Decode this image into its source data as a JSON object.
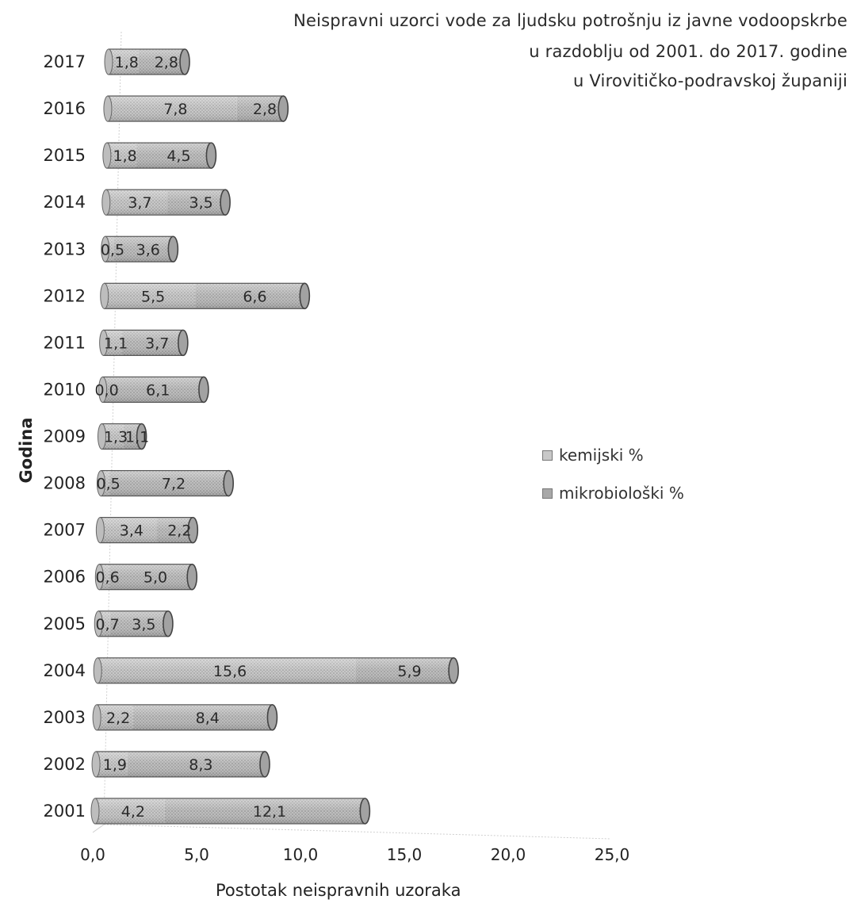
{
  "chart_data": {
    "type": "bar",
    "orientation": "horizontal",
    "stacked": true,
    "title_lines": [
      "Neispravni uzorci vode za ljudsku potrošnju iz javne vodoopskrbe",
      "u razdoblju od 2001. do 2017. godine",
      "u  Virovitičko-podravskoj županiji"
    ],
    "xlabel": "Postotak neispravnih uzoraka",
    "ylabel": "Godina",
    "xlim": [
      0,
      25
    ],
    "xticks": [
      "0,0",
      "5,0",
      "10,0",
      "15,0",
      "20,0",
      "25,0"
    ],
    "xtick_values": [
      0,
      5,
      10,
      15,
      20,
      25
    ],
    "categories": [
      "2017",
      "2016",
      "2015",
      "2014",
      "2013",
      "2012",
      "2011",
      "2010",
      "2009",
      "2008",
      "2007",
      "2006",
      "2005",
      "2004",
      "2003",
      "2002",
      "2001"
    ],
    "series": [
      {
        "name": "kemijski %",
        "values": [
          1.8,
          7.8,
          1.8,
          3.7,
          0.5,
          5.5,
          1.1,
          0.0,
          1.3,
          0.5,
          3.4,
          0.6,
          0.7,
          15.6,
          2.2,
          1.9,
          4.2
        ],
        "labels": [
          "1,8",
          "7,8",
          "1,8",
          "3,7",
          "0,5",
          "5,5",
          "1,1",
          "0,0",
          "1,3",
          "0,5",
          "3,4",
          "0,6",
          "0,7",
          "15,6",
          "2,2",
          "1,9",
          "4,2"
        ]
      },
      {
        "name": "mikrobiološki %",
        "values": [
          2.8,
          2.8,
          4.5,
          3.5,
          3.6,
          6.6,
          3.7,
          6.1,
          1.1,
          7.2,
          2.2,
          5.0,
          3.5,
          5.9,
          8.4,
          8.3,
          12.1
        ],
        "labels": [
          "2,8",
          "2,8",
          "4,5",
          "3,5",
          "3,6",
          "6,6",
          "3,7",
          "6,1",
          "1,1",
          "7,2",
          "2,2",
          "5,0",
          "3,5",
          "5,9",
          "8,4",
          "8,3",
          "12,1"
        ]
      }
    ],
    "legend_position": "right",
    "grid": false,
    "colors": {
      "bar_fill": "#c4c4c4",
      "bar_edge": "#555555",
      "cap_fill": "#9a9a9a"
    }
  }
}
